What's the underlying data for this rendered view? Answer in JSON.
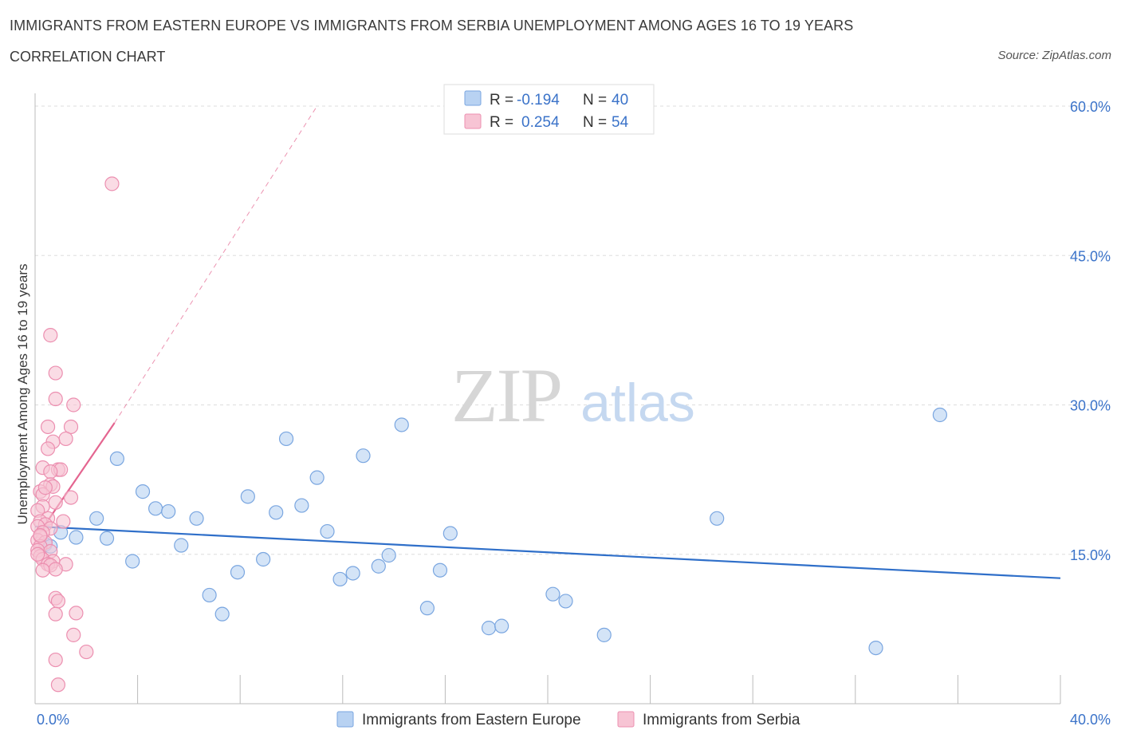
{
  "title": "IMMIGRANTS FROM EASTERN EUROPE VS IMMIGRANTS FROM SERBIA UNEMPLOYMENT AMONG AGES 16 TO 19 YEARS",
  "subtitle": "CORRELATION CHART",
  "source": "Source: ZipAtlas.com",
  "watermark": {
    "zip": "ZIP",
    "atlas": "atlas"
  },
  "legend_box": {
    "series1": {
      "r_label": "R =",
      "r_value": "-0.194",
      "n_label": "N =",
      "n_value": "40"
    },
    "series2": {
      "r_label": "R =",
      "r_value": "0.254",
      "n_label": "N =",
      "n_value": "54"
    }
  },
  "colors": {
    "blue_fill": "#b8d2f2",
    "blue_stroke": "#7aa6e0",
    "blue_line": "#2f6fc9",
    "pink_fill": "#f7c4d4",
    "pink_stroke": "#ec8fb0",
    "pink_line": "#e46590",
    "tick_text": "#3b73c9",
    "grid": "#dddddd"
  },
  "chart_data": {
    "type": "scatter",
    "title": "IMMIGRANTS FROM EASTERN EUROPE VS IMMIGRANTS FROM SERBIA UNEMPLOYMENT AMONG AGES 16 TO 19 YEARS",
    "xlabel": "",
    "ylabel": "Unemployment Among Ages 16 to 19 years",
    "xlim": [
      0,
      40
    ],
    "ylim": [
      0,
      60
    ],
    "x_tick_labels": [
      "0.0%",
      "40.0%"
    ],
    "y_ticks": [
      15,
      30,
      45,
      60
    ],
    "y_tick_labels": [
      "15.0%",
      "30.0%",
      "45.0%",
      "60.0%"
    ],
    "grid": true,
    "legend_position": "bottom",
    "series": [
      {
        "name": "Immigrants from Eastern Europe",
        "color": "#b8d2f2",
        "points": [
          [
            0.4,
            16.0
          ],
          [
            1.6,
            16.7
          ],
          [
            2.4,
            18.6
          ],
          [
            2.8,
            16.6
          ],
          [
            3.2,
            24.6
          ],
          [
            3.8,
            14.3
          ],
          [
            4.2,
            21.3
          ],
          [
            4.7,
            19.6
          ],
          [
            5.2,
            19.3
          ],
          [
            5.7,
            15.9
          ],
          [
            6.3,
            18.6
          ],
          [
            6.8,
            10.9
          ],
          [
            7.3,
            9.0
          ],
          [
            7.9,
            13.2
          ],
          [
            8.3,
            20.8
          ],
          [
            8.9,
            14.5
          ],
          [
            9.4,
            19.2
          ],
          [
            9.8,
            26.6
          ],
          [
            10.4,
            19.9
          ],
          [
            11.0,
            22.7
          ],
          [
            11.4,
            17.3
          ],
          [
            11.9,
            12.5
          ],
          [
            12.4,
            13.1
          ],
          [
            12.8,
            24.9
          ],
          [
            13.4,
            13.8
          ],
          [
            13.8,
            14.9
          ],
          [
            14.3,
            28.0
          ],
          [
            15.3,
            9.6
          ],
          [
            15.8,
            13.4
          ],
          [
            16.2,
            17.1
          ],
          [
            17.7,
            7.6
          ],
          [
            18.2,
            7.8
          ],
          [
            20.2,
            11.0
          ],
          [
            20.7,
            10.3
          ],
          [
            22.2,
            6.9
          ],
          [
            26.6,
            18.6
          ],
          [
            32.8,
            5.6
          ],
          [
            35.3,
            29.0
          ],
          [
            1.0,
            17.2
          ],
          [
            0.6,
            15.8
          ]
        ]
      },
      {
        "name": "Immigrants from Serbia",
        "color": "#f7c4d4",
        "points": [
          [
            3.0,
            52.2
          ],
          [
            0.6,
            37.0
          ],
          [
            0.8,
            33.2
          ],
          [
            0.8,
            30.6
          ],
          [
            1.5,
            30.0
          ],
          [
            0.5,
            27.8
          ],
          [
            1.4,
            27.8
          ],
          [
            1.2,
            26.6
          ],
          [
            0.7,
            26.3
          ],
          [
            0.5,
            25.6
          ],
          [
            0.3,
            23.7
          ],
          [
            0.9,
            23.5
          ],
          [
            1.0,
            23.5
          ],
          [
            0.6,
            23.3
          ],
          [
            0.6,
            22.0
          ],
          [
            0.7,
            21.8
          ],
          [
            0.2,
            21.3
          ],
          [
            0.3,
            21.0
          ],
          [
            1.4,
            20.7
          ],
          [
            0.8,
            20.2
          ],
          [
            0.3,
            19.8
          ],
          [
            0.1,
            19.4
          ],
          [
            0.5,
            18.6
          ],
          [
            1.1,
            18.3
          ],
          [
            0.2,
            18.3
          ],
          [
            0.4,
            18.0
          ],
          [
            0.1,
            17.8
          ],
          [
            0.6,
            17.6
          ],
          [
            0.3,
            17.2
          ],
          [
            0.2,
            16.8
          ],
          [
            0.1,
            16.4
          ],
          [
            0.4,
            16.2
          ],
          [
            0.2,
            15.8
          ],
          [
            0.1,
            15.4
          ],
          [
            0.6,
            15.3
          ],
          [
            0.2,
            14.8
          ],
          [
            0.3,
            14.5
          ],
          [
            0.7,
            14.3
          ],
          [
            0.5,
            14.0
          ],
          [
            1.2,
            14.0
          ],
          [
            0.6,
            13.9
          ],
          [
            0.8,
            13.5
          ],
          [
            0.3,
            13.4
          ],
          [
            0.8,
            10.6
          ],
          [
            0.9,
            10.3
          ],
          [
            0.8,
            9.0
          ],
          [
            1.6,
            9.1
          ],
          [
            1.5,
            6.9
          ],
          [
            2.0,
            5.2
          ],
          [
            0.8,
            4.4
          ],
          [
            0.9,
            1.9
          ],
          [
            0.2,
            16.9
          ],
          [
            0.1,
            15.0
          ],
          [
            0.4,
            21.7
          ]
        ]
      }
    ],
    "trend_lines": [
      {
        "series": "Immigrants from Eastern Europe",
        "x": [
          0,
          40
        ],
        "y": [
          17.8,
          12.6
        ],
        "style": "solid"
      },
      {
        "series": "Immigrants from Serbia",
        "x": [
          0,
          3.1
        ],
        "y": [
          16.5,
          28.2
        ],
        "style": "solid"
      },
      {
        "series": "Immigrants from Serbia",
        "x": [
          3.1,
          11.0
        ],
        "y": [
          28.2,
          60.0
        ],
        "style": "dashed"
      }
    ]
  }
}
